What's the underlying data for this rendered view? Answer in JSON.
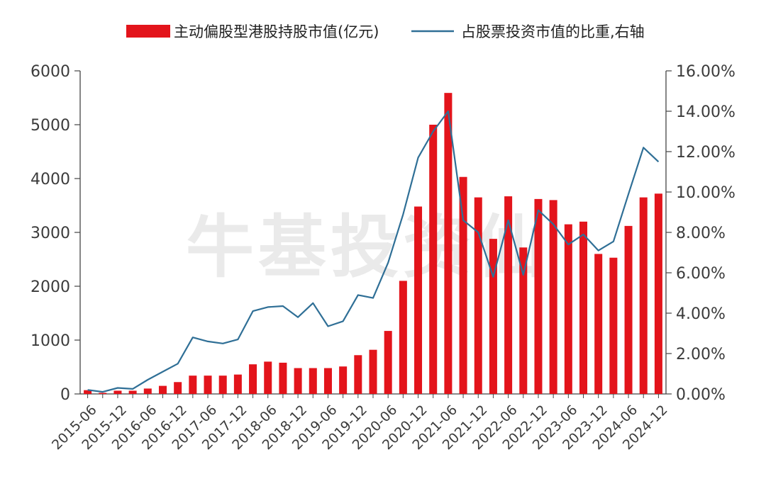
{
  "watermark": "牛基投资仙",
  "legend": {
    "bar_label": "主动偏股型港股持股市值(亿元)",
    "line_label": "占股票投资市值的比重,右轴"
  },
  "colors": {
    "bar": "#e3141b",
    "line": "#2f6f96",
    "axis": "#444444"
  },
  "chart_data": {
    "type": "bar",
    "combo": "bar + line (secondary right axis)",
    "categories": [
      "2015-06",
      "2015-09",
      "2015-12",
      "2016-03",
      "2016-06",
      "2016-09",
      "2016-12",
      "2017-03",
      "2017-06",
      "2017-09",
      "2017-12",
      "2018-03",
      "2018-06",
      "2018-09",
      "2018-12",
      "2019-03",
      "2019-06",
      "2019-09",
      "2019-12",
      "2020-03",
      "2020-06",
      "2020-09",
      "2020-12",
      "2021-03",
      "2021-06",
      "2021-09",
      "2021-12",
      "2022-03",
      "2022-06",
      "2022-09",
      "2022-12",
      "2023-03",
      "2023-06",
      "2023-09",
      "2023-12",
      "2024-03",
      "2024-06",
      "2024-09",
      "2024-12"
    ],
    "x_tick_labels": [
      "2015-06",
      "2015-12",
      "2016-06",
      "2016-12",
      "2017-06",
      "2017-12",
      "2018-06",
      "2018-12",
      "2019-06",
      "2019-12",
      "2020-06",
      "2020-12",
      "2021-06",
      "2021-12",
      "2022-06",
      "2022-12",
      "2023-06",
      "2023-12",
      "2024-06",
      "2024-12"
    ],
    "series": [
      {
        "name": "主动偏股型港股持股市值(亿元)",
        "kind": "bar",
        "axis": "left",
        "values": [
          70,
          20,
          60,
          60,
          100,
          150,
          220,
          340,
          340,
          340,
          360,
          550,
          600,
          580,
          480,
          480,
          480,
          510,
          720,
          820,
          1170,
          2100,
          3480,
          5000,
          5590,
          4030,
          3650,
          2880,
          3670,
          2720,
          3620,
          3600,
          3150,
          3200,
          2600,
          2530,
          3120,
          3650,
          3720
        ]
      },
      {
        "name": "占股票投资市值的比重,右轴",
        "kind": "line",
        "axis": "right",
        "values": [
          0.2,
          0.1,
          0.3,
          0.25,
          0.7,
          1.1,
          1.5,
          2.8,
          2.6,
          2.5,
          2.7,
          4.1,
          4.3,
          4.35,
          3.8,
          4.5,
          3.35,
          3.6,
          4.9,
          4.75,
          6.5,
          8.9,
          11.7,
          13.0,
          14.0,
          8.6,
          8.0,
          5.8,
          8.6,
          5.9,
          9.1,
          8.4,
          7.4,
          7.9,
          7.1,
          7.55,
          9.9,
          12.2,
          11.5
        ]
      }
    ],
    "y_left": {
      "ylim": [
        0,
        6000
      ],
      "ticks": [
        0,
        1000,
        2000,
        3000,
        4000,
        5000,
        6000
      ],
      "tick_labels": [
        "0",
        "1000",
        "2000",
        "3000",
        "4000",
        "5000",
        "6000"
      ]
    },
    "y_right": {
      "ylim": [
        0,
        16
      ],
      "ticks": [
        0,
        2,
        4,
        6,
        8,
        10,
        12,
        14,
        16
      ],
      "tick_labels": [
        "0.00%",
        "2.00%",
        "4.00%",
        "6.00%",
        "8.00%",
        "10.00%",
        "12.00%",
        "14.00%",
        "16.00%"
      ]
    },
    "grid": false,
    "legend_position": "top"
  }
}
